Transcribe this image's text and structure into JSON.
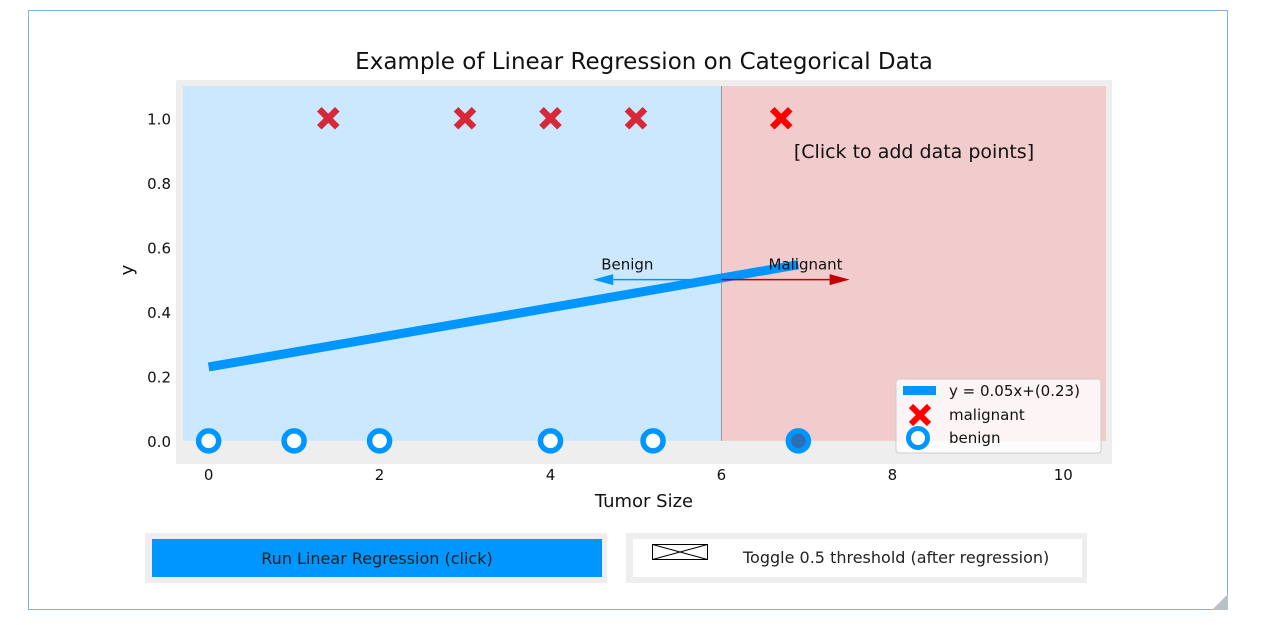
{
  "chart_data": {
    "type": "scatter",
    "title": "Example of Linear Regression on Categorical Data",
    "xlabel": "Tumor Size",
    "ylabel": "y",
    "xlim": [
      -0.3,
      10.5
    ],
    "ylim": [
      -0.05,
      1.1
    ],
    "xticks": [
      0,
      2,
      4,
      6,
      8,
      10
    ],
    "yticks": [
      0.0,
      0.2,
      0.4,
      0.6,
      0.8,
      1.0
    ],
    "threshold_x": 6.0,
    "regions": {
      "left_color": "#cce8ff",
      "right_color": "#f2cbcc"
    },
    "series": [
      {
        "name": "malignant",
        "marker": "x",
        "color": "#d62839",
        "x": [
          1.4,
          3.0,
          4.0,
          5.0
        ],
        "y": [
          1,
          1,
          1,
          1
        ]
      },
      {
        "name": "benign",
        "marker": "o",
        "color": "#0096ff",
        "x": [
          0,
          1,
          2,
          4,
          5.2
        ],
        "y": [
          0,
          0,
          0,
          0,
          0
        ]
      }
    ],
    "added_points": [
      {
        "x": 6.7,
        "y": 1,
        "marker": "x",
        "color": "#ff0000"
      },
      {
        "x": 6.9,
        "y": 0,
        "marker": "o",
        "color": "#0096ff",
        "edge": "#2e6db4"
      }
    ],
    "regression_line": {
      "label": "y = 0.05x+(0.23)",
      "x": [
        0,
        6.9
      ],
      "y": [
        0.229,
        0.546
      ],
      "color": "#0096ff"
    },
    "annotations": {
      "click_hint": "[Click to add data points]",
      "benign_label": "Benign",
      "malignant_label": "Malignant",
      "arrow_y": 0.5,
      "benign_arrow_x": [
        6.0,
        4.5
      ],
      "malignant_arrow_x": [
        6.0,
        7.5
      ],
      "benign_arrow_color": "#0096ff",
      "malignant_arrow_color": "#c00000"
    },
    "legend": {
      "placement": "lower-right",
      "entries": [
        "y = 0.05x+(0.23)",
        "malignant",
        "benign"
      ]
    }
  },
  "controls": {
    "run_button_label": "Run Linear Regression (click)",
    "threshold_toggle_label": "Toggle 0.5 threshold (after regression)"
  }
}
